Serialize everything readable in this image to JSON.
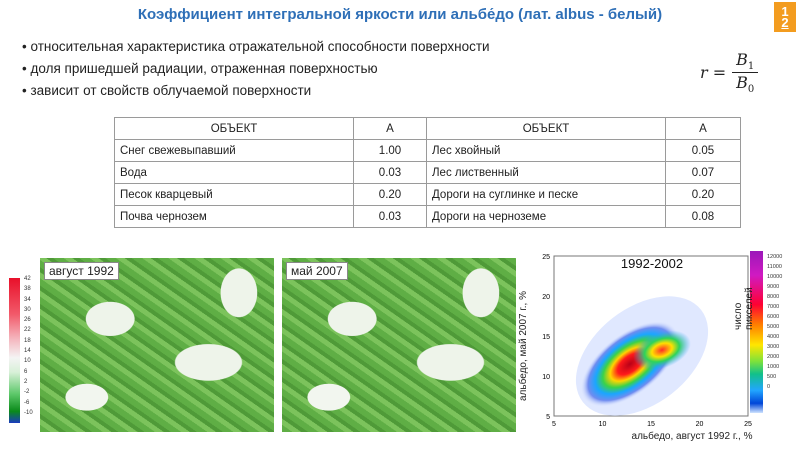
{
  "slide": {
    "title": "Коэффициент интегральной яркости или альбе́до (лат. albus - белый)",
    "number_top": "1",
    "number_bottom": "2"
  },
  "bullets": [
    "относительная характеристика отражательной способности поверхности",
    "доля пришедшей радиации, отраженная поверхностью",
    "зависит от свойств облучаемой поверхности"
  ],
  "formula": {
    "lhs": "r =",
    "numerator": "B",
    "numerator_sub": "1",
    "denominator": "B",
    "denominator_sub": "0"
  },
  "table": {
    "headers": [
      "ОБЪЕКТ",
      "A",
      "ОБЪЕКТ",
      "A"
    ],
    "rows": [
      [
        "Снег свежевыпавший",
        "1.00",
        "Лес хвойный",
        "0.05"
      ],
      [
        "Вода",
        "0.03",
        "Лес лиственный",
        "0.07"
      ],
      [
        "Песок кварцевый",
        "0.20",
        "Дороги на суглинке и песке",
        "0.20"
      ],
      [
        "Почва чернозем",
        "0.03",
        "Дороги на черноземе",
        "0.08"
      ]
    ]
  },
  "scale_labels": [
    "42",
    "38",
    "34",
    "30",
    "26",
    "22",
    "18",
    "14",
    "10",
    "6",
    "2",
    "-2",
    "-6",
    "-10"
  ],
  "maps": [
    {
      "label": "август 1992"
    },
    {
      "label": "май 2007"
    }
  ],
  "colorbar": {
    "title": "число пикселей",
    "labels": [
      "12000",
      "11000",
      "10000",
      "9000",
      "8000",
      "7000",
      "6000",
      "5000",
      "4000",
      "3000",
      "2000",
      "1000",
      "500",
      "0"
    ],
    "colors": {
      "top": "#9b18b9",
      "mid": "#ffe600",
      "low": "#0046d8"
    }
  },
  "chart_data": {
    "type": "heatmap",
    "title": "1992-2002",
    "xlabel": "альбедо, август 1992 г., %",
    "ylabel": "альбедо, май 2007 г., %",
    "x_ticks": [
      5,
      10,
      15,
      20,
      25
    ],
    "y_ticks": [
      5,
      10,
      15,
      20,
      25
    ],
    "xlim": [
      5,
      25
    ],
    "ylim": [
      5,
      25
    ]
  }
}
